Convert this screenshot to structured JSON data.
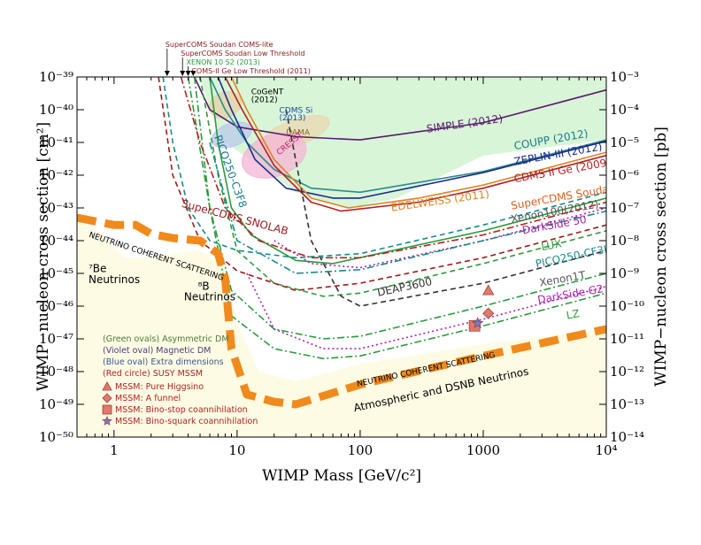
{
  "chart_data": {
    "type": "line",
    "xlabel": "WIMP Mass [GeV/c²]",
    "ylabel": "WIMP−nucleon cross section [cm²]",
    "ylabel_right": "WIMP−nucleon cross section [pb]",
    "x_scale": "log",
    "y_scale": "log",
    "xlim": [
      0.5,
      10000
    ],
    "ylim": [
      1e-50,
      1e-39
    ],
    "x_ticks": [
      {
        "value": 1,
        "label": "1"
      },
      {
        "value": 10,
        "label": "10"
      },
      {
        "value": 100,
        "label": "100"
      },
      {
        "value": 1000,
        "label": "1000"
      },
      {
        "value": 10000,
        "label": "10⁴"
      }
    ],
    "y_ticks_left": [
      {
        "value": 1e-39,
        "label": "10⁻³⁹"
      },
      {
        "value": 1e-40,
        "label": "10⁻⁴⁰"
      },
      {
        "value": 1e-41,
        "label": "10⁻⁴¹"
      },
      {
        "value": 1e-42,
        "label": "10⁻⁴²"
      },
      {
        "value": 1e-43,
        "label": "10⁻⁴³"
      },
      {
        "value": 1e-44,
        "label": "10⁻⁴⁴"
      },
      {
        "value": 1e-45,
        "label": "10⁻⁴⁵"
      },
      {
        "value": 1e-46,
        "label": "10⁻⁴⁶"
      },
      {
        "value": 1e-47,
        "label": "10⁻⁴⁷"
      },
      {
        "value": 1e-48,
        "label": "10⁻⁴⁸"
      },
      {
        "value": 1e-49,
        "label": "10⁻⁴⁹"
      },
      {
        "value": 1e-50,
        "label": "10⁻⁵⁰"
      }
    ],
    "y_ticks_right": [
      {
        "value": 1e-39,
        "label": "10⁻³"
      },
      {
        "value": 1e-40,
        "label": "10⁻⁴"
      },
      {
        "value": 1e-41,
        "label": "10⁻⁵"
      },
      {
        "value": 1e-42,
        "label": "10⁻⁶"
      },
      {
        "value": 1e-43,
        "label": "10⁻⁷"
      },
      {
        "value": 1e-44,
        "label": "10⁻⁸"
      },
      {
        "value": 1e-45,
        "label": "10⁻⁹"
      },
      {
        "value": 1e-46,
        "label": "10⁻¹⁰"
      },
      {
        "value": 1e-47,
        "label": "10⁻¹¹"
      },
      {
        "value": 1e-48,
        "label": "10⁻¹²"
      },
      {
        "value": 1e-49,
        "label": "10⁻¹³"
      },
      {
        "value": 1e-50,
        "label": "10⁻¹⁴"
      }
    ],
    "regions": [
      {
        "name": "SIMPLE / excluded region",
        "color": "#d8f5d8",
        "points": [
          [
            5,
            1e-39
          ],
          [
            10000,
            1e-39
          ],
          [
            10000,
            1.2e-41
          ],
          [
            1000,
            4e-42
          ],
          [
            200,
            2e-43
          ],
          [
            80,
            1e-43
          ],
          [
            30,
            3e-43
          ],
          [
            15,
            2e-42
          ],
          [
            8,
            1e-41
          ],
          [
            6,
            1e-40
          ]
        ]
      },
      {
        "name": "Neutrino background",
        "color": "#fdfbe3",
        "points": [
          [
            0.5,
            1e-50
          ],
          [
            10000,
            1e-50
          ],
          [
            10000,
            2e-47
          ],
          [
            1000,
            7e-48
          ],
          [
            100,
            1.7e-48
          ],
          [
            30,
            5e-49
          ],
          [
            15,
            1e-48
          ],
          [
            10,
            3e-47
          ],
          [
            8,
            1.5e-45
          ],
          [
            5,
            5e-45
          ],
          [
            3,
            4e-45
          ],
          [
            2,
            3e-45
          ],
          [
            1.2,
            3e-45
          ],
          [
            0.8,
            1.6e-44
          ],
          [
            0.5,
            4e-44
          ]
        ]
      }
    ],
    "ovals": [
      {
        "name": "DAMA",
        "color": "#ead7b0",
        "center": [
          30,
          2e-41
        ],
        "span": [
          [
            16,
            5e-41
          ],
          [
            60,
            8e-42
          ]
        ]
      },
      {
        "name": "CoGeNT",
        "color": "#e4d2a8",
        "center": [
          8,
          1.4e-40
        ],
        "span": [
          [
            6,
            3e-40
          ],
          [
            11,
            5e-41
          ]
        ]
      },
      {
        "name": "CDMS Si",
        "color": "#b9c9ec",
        "center": [
          9,
          1.7e-41
        ],
        "span": [
          [
            6,
            4e-41
          ],
          [
            13,
            8e-42
          ]
        ]
      },
      {
        "name": "CRESST",
        "color": "#f5b5d6",
        "center": [
          20,
          4e-42
        ],
        "span": [
          [
            13,
            1.5e-41
          ],
          [
            45,
            8e-43
          ]
        ]
      }
    ],
    "series": [
      {
        "name": "SIMPLE (2012)",
        "color": "#5a1a6e",
        "style": "solid",
        "x": [
          4.5,
          6,
          10,
          30,
          100,
          1000,
          10000
        ],
        "y": [
          1e-39,
          1e-40,
          3e-41,
          1.5e-41,
          1.2e-41,
          4e-41,
          4e-40
        ]
      },
      {
        "name": "COUPP (2012)",
        "color": "#2a8c8c",
        "style": "solid",
        "x": [
          6,
          8,
          12,
          20,
          40,
          100,
          1000,
          10000
        ],
        "y": [
          1e-39,
          1e-40,
          1e-41,
          1.5e-42,
          4e-43,
          3e-43,
          1.3e-42,
          1.2e-41
        ]
      },
      {
        "name": "ZEPLIN-III (2012)",
        "color": "#1b2a8c",
        "style": "solid",
        "x": [
          7,
          9,
          14,
          25,
          60,
          100,
          1000,
          10000
        ],
        "y": [
          1e-39,
          1e-40,
          3e-42,
          4e-43,
          2e-43,
          2e-43,
          1.2e-42,
          1.1e-41
        ]
      },
      {
        "name": "CDMS II Ge (2009)",
        "color": "#b22222",
        "style": "solid",
        "x": [
          8,
          11,
          20,
          40,
          70,
          300,
          1000,
          10000
        ],
        "y": [
          1e-39,
          1e-40,
          2e-42,
          1.5e-43,
          8e-44,
          1.5e-43,
          4e-43,
          4e-42
        ]
      },
      {
        "name": "EDELWEISS (2011)",
        "color": "#e08020",
        "style": "solid",
        "x": [
          9,
          12,
          20,
          40,
          80,
          300,
          1000,
          10000
        ],
        "y": [
          1e-39,
          1e-40,
          3e-42,
          2e-43,
          1e-43,
          2e-43,
          5e-43,
          5e-42
        ]
      },
      {
        "name": "XENON100 (2012)",
        "color": "#2b9a3a",
        "style": "solid",
        "x": [
          6,
          7,
          9,
          13,
          30,
          60,
          1000,
          10000
        ],
        "y": [
          1e-39,
          1e-41,
          1e-43,
          1.5e-44,
          2.5e-45,
          2e-45,
          2e-44,
          2e-43
        ]
      },
      {
        "name": "LUX",
        "color": "#2b9a3a",
        "style": "dashed",
        "x": [
          5,
          7,
          10,
          20,
          50,
          100,
          1000,
          10000
        ],
        "y": [
          1e-39,
          1e-42,
          5e-45,
          5e-46,
          2e-46,
          2.5e-46,
          2e-45,
          2e-44
        ]
      },
      {
        "name": "Xenon1T",
        "color": "#2b9a3a",
        "style": "dashdot",
        "x": [
          4,
          6,
          9,
          20,
          50,
          100,
          1000,
          10000
        ],
        "y": [
          1e-39,
          1e-43,
          3e-46,
          2e-47,
          1e-47,
          1.2e-47,
          1e-46,
          1e-45
        ]
      },
      {
        "name": "LZ",
        "color": "#2b9a3a",
        "style": "dashdot",
        "x": [
          4.5,
          6,
          9,
          20,
          50,
          100,
          1000,
          10000
        ],
        "y": [
          1e-39,
          1e-43,
          5e-47,
          5e-48,
          2.5e-48,
          3e-48,
          2.5e-47,
          2.5e-46
        ]
      },
      {
        "name": "DarkSide G2",
        "color": "#aa22aa",
        "style": "dotted",
        "x": [
          12,
          20,
          50,
          100,
          1000,
          10000
        ],
        "y": [
          1e-45,
          2e-47,
          5e-48,
          5e-48,
          4e-47,
          4e-46
        ]
      },
      {
        "name": "DarkSide 50",
        "color": "#aa22aa",
        "style": "dotted",
        "x": [
          20,
          40,
          100,
          1000,
          10000
        ],
        "y": [
          1e-44,
          2e-45,
          1.5e-45,
          1e-44,
          1e-43
        ]
      },
      {
        "name": "SuperCDMS Soudan",
        "color": "#b22222",
        "style": "dashdot",
        "x": [
          3.5,
          5,
          8,
          15,
          40,
          100,
          1000,
          10000
        ],
        "y": [
          1e-39,
          1e-41,
          1e-43,
          1e-44,
          3e-45,
          3e-45,
          1.5e-44,
          1.5e-43
        ]
      },
      {
        "name": "SuperCDMS SNOLAB",
        "color": "#9c1a1a",
        "style": "dashed",
        "x": [
          2.3,
          3,
          5,
          10,
          30,
          100,
          1000,
          10000
        ],
        "y": [
          1e-39,
          1e-42,
          1e-44,
          1.2e-45,
          3e-46,
          5e-46,
          3e-45,
          3e-44
        ]
      },
      {
        "name": "DEAP3600",
        "color": "#333333",
        "style": "dashed",
        "x": [
          25,
          40,
          70,
          100,
          1000,
          10000
        ],
        "y": [
          1e-40,
          1e-44,
          2e-46,
          1e-46,
          5e-46,
          5e-45
        ]
      },
      {
        "name": "PICO250-C3F8",
        "color": "#1a8a8a",
        "style": "dashed",
        "x": [
          2.5,
          3,
          4,
          6,
          10,
          30,
          100,
          1000,
          10000
        ],
        "y": [
          1e-39,
          1e-41,
          1e-43,
          1e-44,
          5e-45,
          3e-45,
          4e-45,
          3e-44,
          3e-43
        ]
      },
      {
        "name": "PICO250-CF3I",
        "color": "#1a8a8a",
        "style": "dashdot",
        "x": [
          6,
          10,
          30,
          100,
          1000,
          10000
        ],
        "y": [
          1e-41,
          1e-44,
          1e-45,
          1.3e-45,
          1e-44,
          8e-44
        ]
      },
      {
        "name": "Neutrino coherent scattering",
        "color": "#f08a1c",
        "style": "dashed-thick",
        "x": [
          0.5,
          1,
          1.5,
          2,
          3,
          5,
          7,
          8,
          9,
          12,
          20,
          30,
          100,
          1000,
          10000
        ],
        "y": [
          5e-44,
          3e-44,
          3e-44,
          1.6e-44,
          1.2e-44,
          1e-44,
          4e-45,
          7e-46,
          5e-48,
          2e-49,
          1.2e-49,
          1e-49,
          4e-49,
          3e-48,
          2e-47
        ]
      }
    ],
    "points": [
      {
        "name": "MSSM: Pure Higgsino",
        "marker": "triangle",
        "color": "#e07a6a",
        "x": 1100,
        "y": 3e-46
      },
      {
        "name": "MSSM: A funnel",
        "marker": "diamond",
        "color": "#e07a6a",
        "x": 1100,
        "y": 6e-47
      },
      {
        "name": "MSSM: Bino-stop coannihilation",
        "marker": "square",
        "color": "#e07a6a",
        "x": 850,
        "y": 2.5e-47
      },
      {
        "name": "MSSM: Bino-squark coannihilation",
        "marker": "star",
        "color": "#6a7fd0",
        "x": 900,
        "y": 3e-47
      }
    ],
    "legend": {
      "placement": "bottom-left",
      "lines": [
        {
          "text": "(Green ovals) Asymmetric DM",
          "color": "#4a7a3a"
        },
        {
          "text": "(Violet oval) Magnetic DM",
          "color": "#4a3a7a"
        },
        {
          "text": "(Blue oval) Extra dimensions",
          "color": "#3a5a8a"
        },
        {
          "text": "(Red circle) SUSY MSSM",
          "color": "#b22222"
        }
      ],
      "markers": [
        {
          "text": "MSSM: Pure Higgsino",
          "marker": "triangle",
          "color": "#b22222"
        },
        {
          "text": "MSSM: A funnel",
          "marker": "diamond",
          "color": "#b22222"
        },
        {
          "text": "MSSM: Bino-stop coannihilation",
          "marker": "square",
          "color": "#b22222"
        },
        {
          "text": "MSSM: Bino-squark coannihilation",
          "marker": "star",
          "color": "#b22222"
        }
      ]
    },
    "curve_labels": [
      {
        "text": "SIMPLE (2012)",
        "color": "#5a1a6e",
        "x": 350,
        "y": 2e-41,
        "rot": -8
      },
      {
        "text": "COUPP (2012)",
        "color": "#1a7a8a",
        "x": 1800,
        "y": 6e-42,
        "rot": -10
      },
      {
        "text": "ZEPLIN-III (2012)",
        "color": "#1b2a8c",
        "x": 1800,
        "y": 2e-42,
        "rot": -10
      },
      {
        "text": "CDMS II Ge (2009)",
        "color": "#b22222",
        "x": 1800,
        "y": 6e-43,
        "rot": -10
      },
      {
        "text": "EDELWEISS (2011)",
        "color": "#e08020",
        "x": 180,
        "y": 8e-44,
        "rot": -8
      },
      {
        "text": "SuperCDMS Soudan",
        "color": "#e06020",
        "x": 1700,
        "y": 9e-44,
        "rot": -10
      },
      {
        "text": "Xenon100(2012)",
        "color": "#555555",
        "x": 1700,
        "y": 3.5e-44,
        "rot": -10
      },
      {
        "text": "DarkSide 50",
        "color": "#aa22aa",
        "x": 2100,
        "y": 1.6e-44,
        "rot": -10
      },
      {
        "text": "LUX",
        "color": "#2b9a3a",
        "x": 3000,
        "y": 5e-45,
        "rot": -10
      },
      {
        "text": "PICO250-CF3I",
        "color": "#1a8a8a",
        "x": 2700,
        "y": 1.5e-45,
        "rot": -12
      },
      {
        "text": "Xenon1T",
        "color": "#555555",
        "x": 2900,
        "y": 4e-46,
        "rot": -10
      },
      {
        "text": "DarkSide G2",
        "color": "#aa22aa",
        "x": 2800,
        "y": 1.2e-46,
        "rot": -10
      },
      {
        "text": "LZ",
        "color": "#2b9a3a",
        "x": 4800,
        "y": 4e-47,
        "rot": -10
      },
      {
        "text": "DEAP3600",
        "color": "#333333",
        "x": 140,
        "y": 2e-46,
        "rot": -12
      },
      {
        "text": "SuperCDMS SNOLAB",
        "color": "#9c1a1a",
        "x": 3.5,
        "y": 1.1e-43,
        "rot": 15
      },
      {
        "text": "PICO250-C3F8",
        "color": "#1a7a8a",
        "x": 6.5,
        "y": 1.5e-41,
        "rot": 70
      },
      {
        "text": "CoGeNT",
        "color": "#000000",
        "x": 13,
        "y": 3e-40,
        "rot": 0,
        "small": true
      },
      {
        "text": "(2012)",
        "color": "#000000",
        "x": 13,
        "y": 1.7e-40,
        "rot": 0,
        "small": true
      },
      {
        "text": "CDMS Si",
        "color": "#1a4aa8",
        "x": 22,
        "y": 8e-41,
        "rot": 0,
        "small": true
      },
      {
        "text": "(2013)",
        "color": "#1a4aa8",
        "x": 22,
        "y": 4.7e-41,
        "rot": 0,
        "small": true
      },
      {
        "text": "DAMA",
        "color": "#8a6a2a",
        "x": 25,
        "y": 1.7e-41,
        "rot": 0,
        "small": true
      },
      {
        "text": "CRESST",
        "color": "#c0206a",
        "x": 22,
        "y": 4e-42,
        "rot": -40,
        "small": true
      },
      {
        "text": "NEUTRINO COHERENT SCATTERING",
        "color": "#000000",
        "x": 0.62,
        "y": 1.3e-44,
        "rot": 18,
        "small": true
      },
      {
        "text": "NEUTRINO COHERENT SCATTERING",
        "color": "#000000",
        "x": 95,
        "y": 3.5e-49,
        "rot": -12,
        "small": true
      },
      {
        "text": "Atmospheric and DSNB Neutrinos",
        "color": "#000000",
        "x": 90,
        "y": 6e-50,
        "rot": -12,
        "small": false
      },
      {
        "text": "⁷Be",
        "color": "#000000",
        "x": 0.62,
        "y": 1.1e-45,
        "rot": 0,
        "small": false
      },
      {
        "text": "Neutrinos",
        "color": "#000000",
        "x": 0.62,
        "y": 5e-46,
        "rot": 0,
        "small": false
      },
      {
        "text": "⁸B",
        "color": "#000000",
        "x": 4.8,
        "y": 3.2e-46,
        "rot": 0,
        "small": false
      },
      {
        "text": "Neutrinos",
        "color": "#000000",
        "x": 3.7,
        "y": 1.5e-46,
        "rot": 0,
        "small": false
      }
    ],
    "top_annotations": [
      {
        "text": "SuperCOMS Soudan COMS-lite",
        "color": "#8a1a1a",
        "x": 2.7
      },
      {
        "text": "SuperCOMS Soudan Low Threshold",
        "color": "#8a1a1a",
        "x": 3.6
      },
      {
        "text": "XENON 10 S2 (2013)",
        "color": "#2b9a3a",
        "x": 4.0
      },
      {
        "text": "COMS-II Ge Low Threshold (2011)",
        "color": "#8a1a1a",
        "x": 4.4
      }
    ],
    "grid": false,
    "title": ""
  }
}
